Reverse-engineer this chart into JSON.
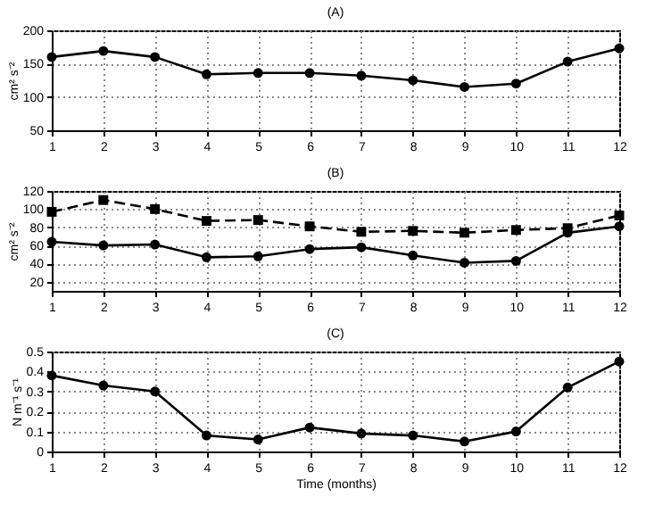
{
  "chart_data": [
    {
      "type": "line",
      "title": "(A)",
      "ylabel": "cm² s⁻²",
      "x": [
        1,
        2,
        3,
        4,
        5,
        6,
        7,
        8,
        9,
        10,
        11,
        12
      ],
      "xlim": [
        1,
        12
      ],
      "xticks": [
        1,
        2,
        3,
        4,
        5,
        6,
        7,
        8,
        9,
        10,
        11,
        12
      ],
      "ylim": [
        50,
        200
      ],
      "yticks": [
        50,
        100,
        150,
        200
      ],
      "grid": true,
      "marker": "circle",
      "line_style": "solid",
      "series": [
        {
          "color": "#000000",
          "values": [
            160,
            169,
            160,
            134,
            136,
            136,
            132,
            125,
            115,
            120,
            153,
            173
          ]
        }
      ]
    },
    {
      "type": "line",
      "title": "(B)",
      "ylabel": "cm² s⁻²",
      "x": [
        1,
        2,
        3,
        4,
        5,
        6,
        7,
        8,
        9,
        10,
        11,
        12
      ],
      "xlim": [
        1,
        12
      ],
      "xticks": [
        1,
        2,
        3,
        4,
        5,
        6,
        7,
        8,
        9,
        10,
        11,
        12
      ],
      "ylim": [
        10,
        120
      ],
      "yticks": [
        20,
        40,
        60,
        80,
        100,
        120
      ],
      "grid": true,
      "series": [
        {
          "color": "#000000",
          "marker": "circle",
          "line_style": "solid",
          "values": [
            64,
            60,
            61,
            47,
            48,
            56,
            58,
            49,
            41,
            43,
            74,
            81
          ]
        },
        {
          "color": "#000000",
          "marker": "square",
          "line_style": "dashed",
          "values": [
            97,
            110,
            100,
            87,
            88,
            81,
            75,
            76,
            74,
            77,
            79,
            93
          ]
        }
      ]
    },
    {
      "type": "line",
      "title": "(C)",
      "xlabel": "Time (months)",
      "ylabel": "N m⁻¹ s⁻¹",
      "x": [
        1,
        2,
        3,
        4,
        5,
        6,
        7,
        8,
        9,
        10,
        11,
        12
      ],
      "xlim": [
        1,
        12
      ],
      "xticks": [
        1,
        2,
        3,
        4,
        5,
        6,
        7,
        8,
        9,
        10,
        11,
        12
      ],
      "ylim": [
        0,
        0.5
      ],
      "yticks": [
        0,
        0.1,
        0.2,
        0.3,
        0.4,
        0.5
      ],
      "grid": true,
      "marker": "circle",
      "line_style": "solid",
      "series": [
        {
          "color": "#000000",
          "values": [
            0.38,
            0.33,
            0.3,
            0.08,
            0.06,
            0.12,
            0.09,
            0.08,
            0.05,
            0.1,
            0.32,
            0.45
          ]
        }
      ]
    }
  ]
}
